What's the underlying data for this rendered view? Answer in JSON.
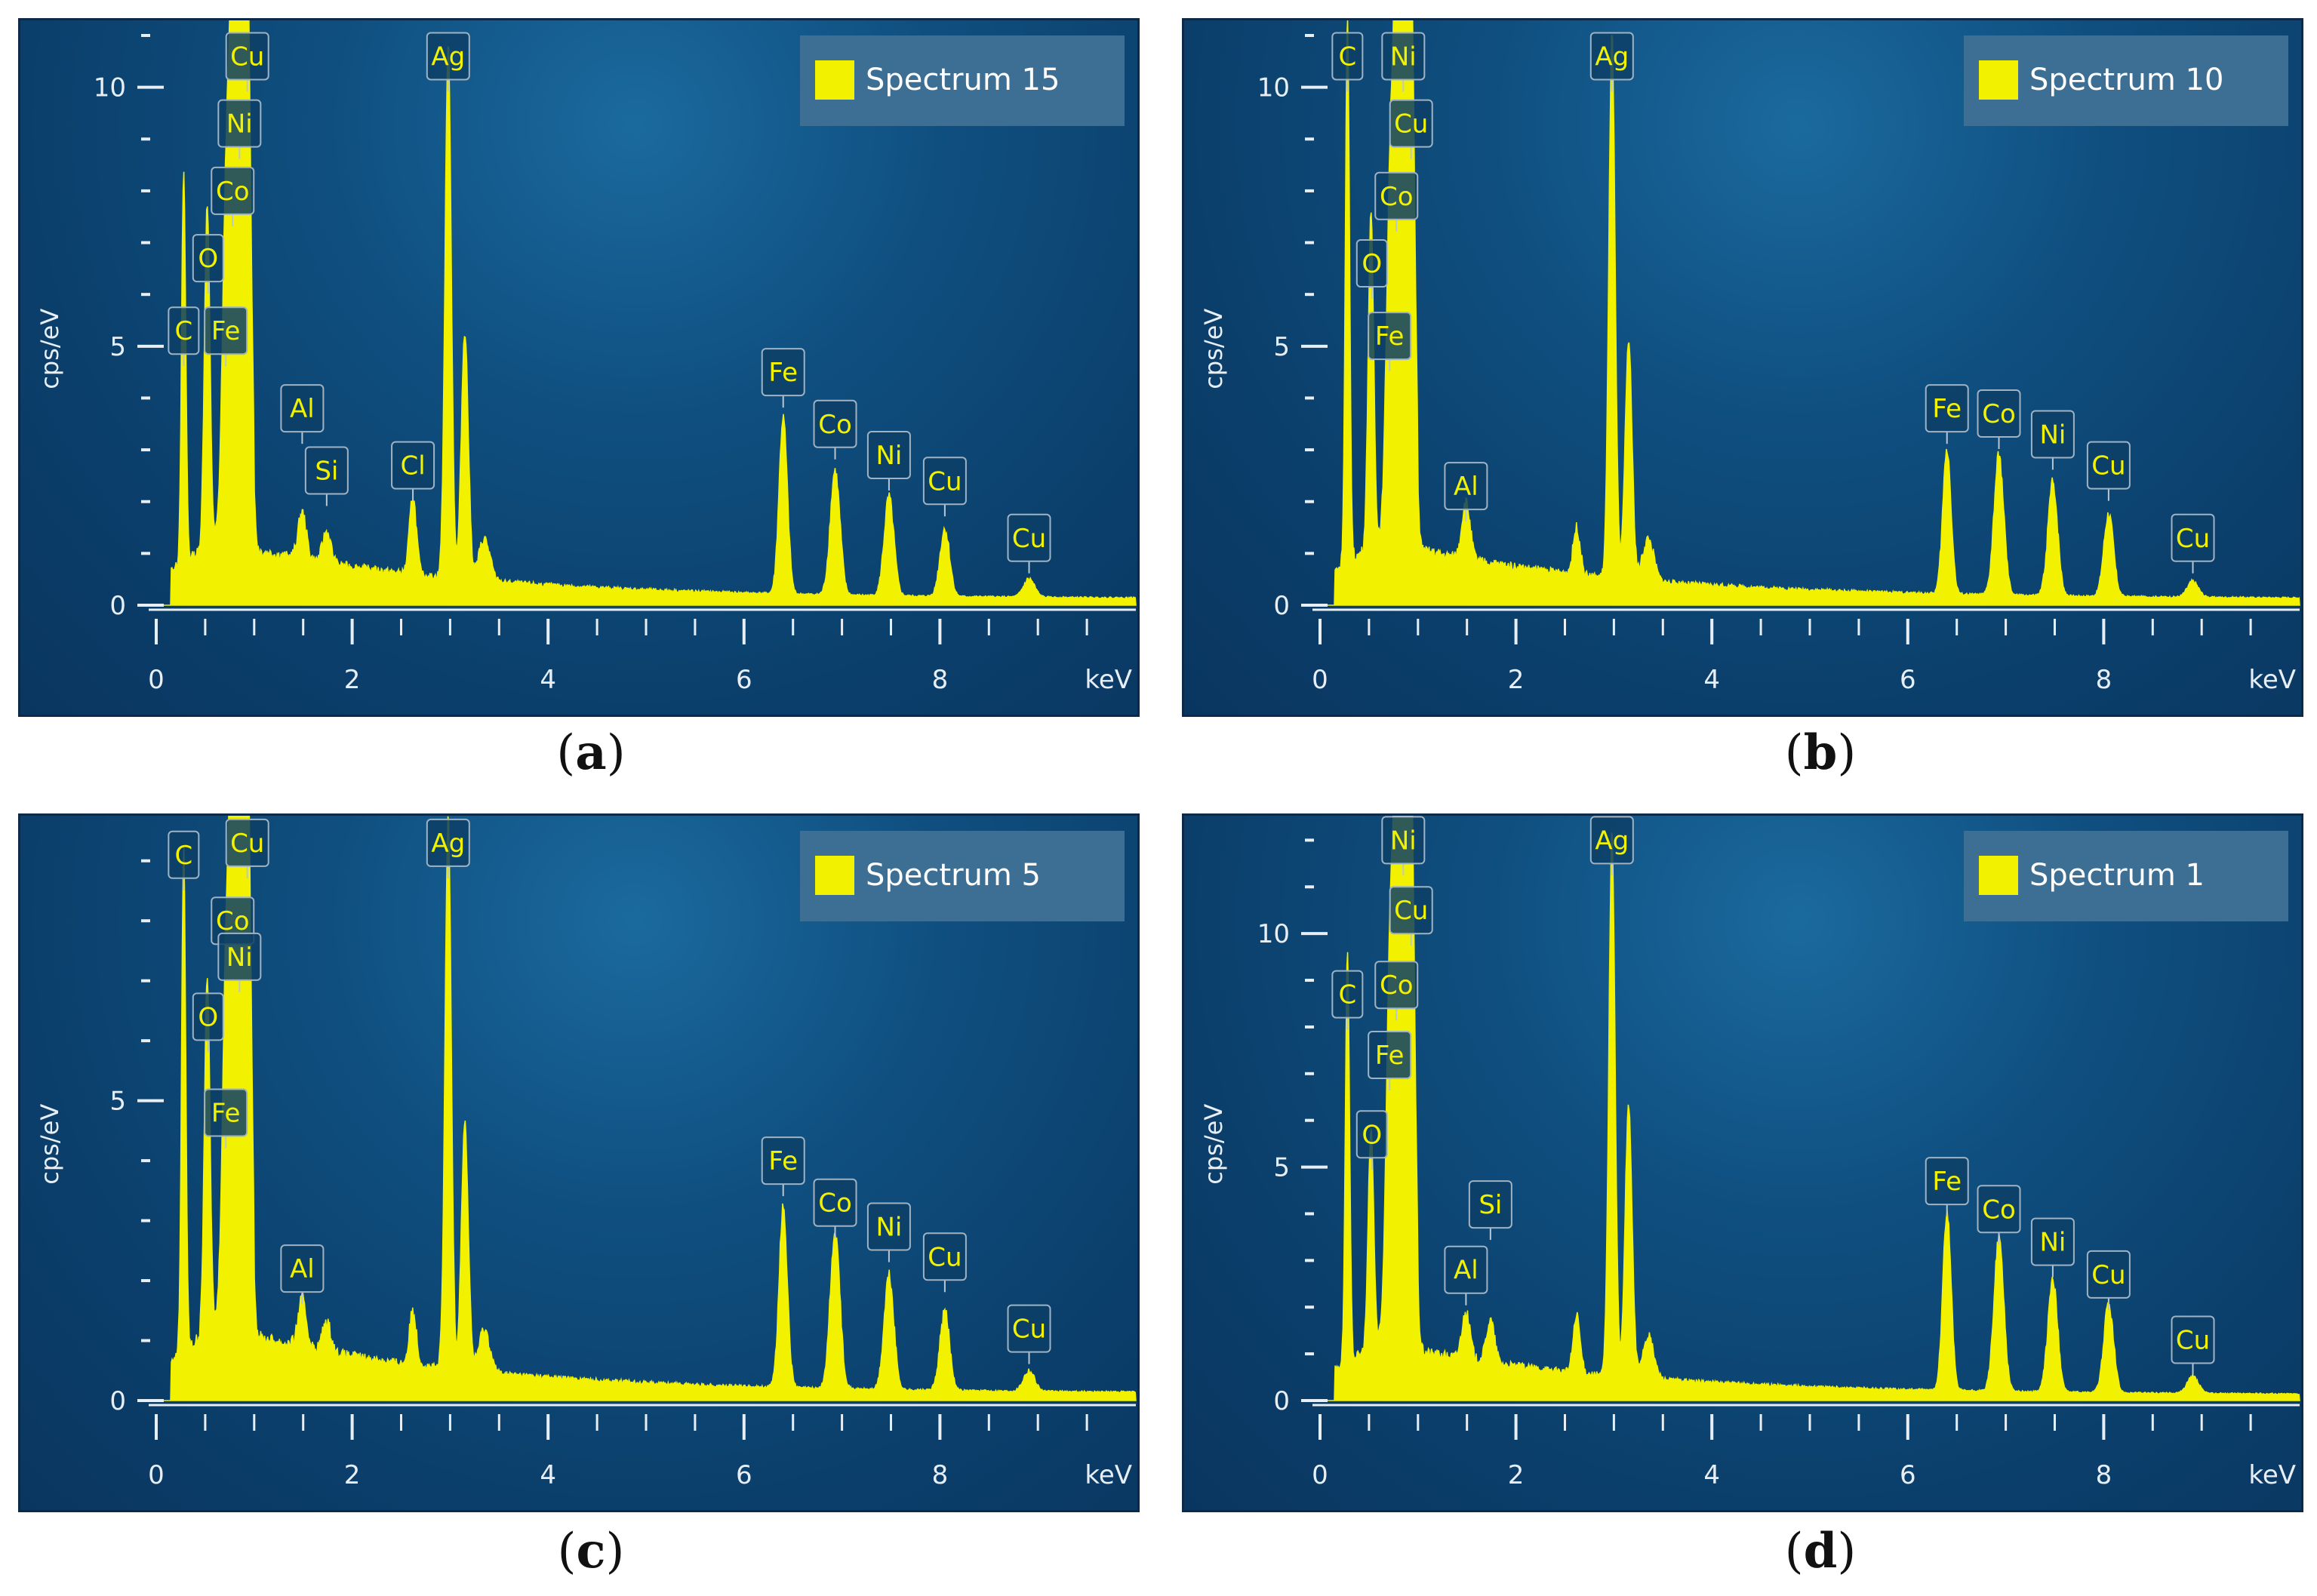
{
  "colors": {
    "spectrum": "#f2f200",
    "axis": "#e8eef5",
    "label_text": "#f2f200",
    "label_bg": "#0d3f66",
    "legend_bg": "#3d6f95"
  },
  "axis": {
    "x_unit": "keV",
    "y_label": "cps/eV"
  },
  "chart_data": [
    {
      "type": "area",
      "caption_letter": "a",
      "legend": "Spectrum 15",
      "xlim": [
        0,
        10
      ],
      "ylim": [
        0,
        11
      ],
      "yticks": [
        0,
        5,
        10
      ],
      "xticks": [
        0,
        2,
        4,
        6,
        8
      ],
      "peaks": [
        {
          "x": 0.28,
          "y": 7.5,
          "w": 0.03
        },
        {
          "x": 0.52,
          "y": 6.6,
          "w": 0.04
        },
        {
          "x": 0.71,
          "y": 5.3,
          "w": 0.05
        },
        {
          "x": 0.78,
          "y": 7.4,
          "w": 0.05
        },
        {
          "x": 0.85,
          "y": 8.5,
          "w": 0.05
        },
        {
          "x": 0.93,
          "y": 9.6,
          "w": 0.05
        },
        {
          "x": 1.49,
          "y": 0.9,
          "w": 0.06
        },
        {
          "x": 1.74,
          "y": 0.6,
          "w": 0.06
        },
        {
          "x": 2.62,
          "y": 1.5,
          "w": 0.05
        },
        {
          "x": 2.98,
          "y": 10.3,
          "w": 0.045
        },
        {
          "x": 3.15,
          "y": 4.8,
          "w": 0.05
        },
        {
          "x": 3.35,
          "y": 0.8,
          "w": 0.08
        },
        {
          "x": 6.4,
          "y": 3.4,
          "w": 0.06
        },
        {
          "x": 6.93,
          "y": 2.4,
          "w": 0.07
        },
        {
          "x": 7.48,
          "y": 1.9,
          "w": 0.07
        },
        {
          "x": 8.05,
          "y": 1.3,
          "w": 0.07
        },
        {
          "x": 8.91,
          "y": 0.35,
          "w": 0.08
        }
      ],
      "labels": [
        {
          "text": "Cu",
          "x": 0.93,
          "y": 10.6
        },
        {
          "text": "Ni",
          "x": 0.85,
          "y": 9.3
        },
        {
          "text": "Co",
          "x": 0.78,
          "y": 8.0
        },
        {
          "text": "O",
          "x": 0.53,
          "y": 6.7
        },
        {
          "text": "C",
          "x": 0.28,
          "y": 5.3
        },
        {
          "text": "Fe",
          "x": 0.71,
          "y": 5.3
        },
        {
          "text": "Al",
          "x": 1.49,
          "y": 3.8
        },
        {
          "text": "Si",
          "x": 1.74,
          "y": 2.6
        },
        {
          "text": "Cl",
          "x": 2.62,
          "y": 2.7
        },
        {
          "text": "Ag",
          "x": 2.98,
          "y": 10.6
        },
        {
          "text": "Fe",
          "x": 6.4,
          "y": 4.5
        },
        {
          "text": "Co",
          "x": 6.93,
          "y": 3.5
        },
        {
          "text": "Ni",
          "x": 7.48,
          "y": 2.9
        },
        {
          "text": "Cu",
          "x": 8.05,
          "y": 2.4
        },
        {
          "text": "Cu",
          "x": 8.91,
          "y": 1.3
        }
      ]
    },
    {
      "type": "area",
      "caption_letter": "b",
      "legend": "Spectrum 10",
      "xlim": [
        0,
        10
      ],
      "ylim": [
        0,
        11
      ],
      "yticks": [
        0,
        5,
        10
      ],
      "xticks": [
        0,
        2,
        4,
        6,
        8
      ],
      "peaks": [
        {
          "x": 0.28,
          "y": 10.5,
          "w": 0.03
        },
        {
          "x": 0.52,
          "y": 6.4,
          "w": 0.04
        },
        {
          "x": 0.71,
          "y": 5.2,
          "w": 0.05
        },
        {
          "x": 0.78,
          "y": 7.6,
          "w": 0.05
        },
        {
          "x": 0.85,
          "y": 8.8,
          "w": 0.05
        },
        {
          "x": 0.93,
          "y": 9.5,
          "w": 0.05
        },
        {
          "x": 1.49,
          "y": 1.1,
          "w": 0.06
        },
        {
          "x": 2.62,
          "y": 0.9,
          "w": 0.05
        },
        {
          "x": 2.98,
          "y": 10.5,
          "w": 0.045
        },
        {
          "x": 3.15,
          "y": 4.6,
          "w": 0.05
        },
        {
          "x": 3.35,
          "y": 0.8,
          "w": 0.08
        },
        {
          "x": 6.4,
          "y": 2.8,
          "w": 0.06
        },
        {
          "x": 6.93,
          "y": 2.7,
          "w": 0.07
        },
        {
          "x": 7.48,
          "y": 2.2,
          "w": 0.07
        },
        {
          "x": 8.05,
          "y": 1.6,
          "w": 0.07
        },
        {
          "x": 8.91,
          "y": 0.3,
          "w": 0.08
        }
      ],
      "labels": [
        {
          "text": "C",
          "x": 0.28,
          "y": 10.6
        },
        {
          "text": "Ni",
          "x": 0.85,
          "y": 10.6
        },
        {
          "text": "Cu",
          "x": 0.93,
          "y": 9.3
        },
        {
          "text": "Co",
          "x": 0.78,
          "y": 7.9
        },
        {
          "text": "O",
          "x": 0.53,
          "y": 6.6
        },
        {
          "text": "Fe",
          "x": 0.71,
          "y": 5.2
        },
        {
          "text": "Al",
          "x": 1.49,
          "y": 2.3
        },
        {
          "text": "Ag",
          "x": 2.98,
          "y": 10.6
        },
        {
          "text": "Fe",
          "x": 6.4,
          "y": 3.8
        },
        {
          "text": "Co",
          "x": 6.93,
          "y": 3.7
        },
        {
          "text": "Ni",
          "x": 7.48,
          "y": 3.3
        },
        {
          "text": "Cu",
          "x": 8.05,
          "y": 2.7
        },
        {
          "text": "Cu",
          "x": 8.91,
          "y": 1.3
        }
      ]
    },
    {
      "type": "area",
      "caption_letter": "c",
      "legend": "Spectrum 5",
      "xlim": [
        0,
        10
      ],
      "ylim": [
        0,
        9.5
      ],
      "yticks": [
        0,
        5
      ],
      "xticks": [
        0,
        2,
        4,
        6,
        8
      ],
      "peaks": [
        {
          "x": 0.28,
          "y": 8.4,
          "w": 0.03
        },
        {
          "x": 0.52,
          "y": 6.0,
          "w": 0.04
        },
        {
          "x": 0.71,
          "y": 4.6,
          "w": 0.05
        },
        {
          "x": 0.78,
          "y": 6.7,
          "w": 0.05
        },
        {
          "x": 0.85,
          "y": 7.5,
          "w": 0.05
        },
        {
          "x": 0.93,
          "y": 8.6,
          "w": 0.05
        },
        {
          "x": 1.49,
          "y": 0.8,
          "w": 0.06
        },
        {
          "x": 1.74,
          "y": 0.5,
          "w": 0.06
        },
        {
          "x": 2.62,
          "y": 0.9,
          "w": 0.05
        },
        {
          "x": 2.98,
          "y": 9.2,
          "w": 0.045
        },
        {
          "x": 3.15,
          "y": 4.1,
          "w": 0.05
        },
        {
          "x": 3.35,
          "y": 0.7,
          "w": 0.08
        },
        {
          "x": 6.4,
          "y": 3.0,
          "w": 0.06
        },
        {
          "x": 6.93,
          "y": 2.6,
          "w": 0.07
        },
        {
          "x": 7.48,
          "y": 1.9,
          "w": 0.07
        },
        {
          "x": 8.05,
          "y": 1.3,
          "w": 0.07
        },
        {
          "x": 8.91,
          "y": 0.35,
          "w": 0.08
        }
      ],
      "labels": [
        {
          "text": "Cu",
          "x": 0.93,
          "y": 9.3
        },
        {
          "text": "C",
          "x": 0.28,
          "y": 9.1
        },
        {
          "text": "Co",
          "x": 0.78,
          "y": 8.0
        },
        {
          "text": "Ni",
          "x": 0.85,
          "y": 7.4
        },
        {
          "text": "O",
          "x": 0.53,
          "y": 6.4
        },
        {
          "text": "Fe",
          "x": 0.71,
          "y": 4.8
        },
        {
          "text": "Al",
          "x": 1.49,
          "y": 2.2
        },
        {
          "text": "Ag",
          "x": 2.98,
          "y": 9.3
        },
        {
          "text": "Fe",
          "x": 6.4,
          "y": 4.0
        },
        {
          "text": "Co",
          "x": 6.93,
          "y": 3.3
        },
        {
          "text": "Ni",
          "x": 7.48,
          "y": 2.9
        },
        {
          "text": "Cu",
          "x": 8.05,
          "y": 2.4
        },
        {
          "text": "Cu",
          "x": 8.91,
          "y": 1.2
        }
      ]
    },
    {
      "type": "area",
      "caption_letter": "d",
      "legend": "Spectrum 1",
      "xlim": [
        0,
        10
      ],
      "ylim": [
        0,
        12.2
      ],
      "yticks": [
        0,
        5,
        10
      ],
      "xticks": [
        0,
        2,
        4,
        6,
        8
      ],
      "peaks": [
        {
          "x": 0.28,
          "y": 8.8,
          "w": 0.03
        },
        {
          "x": 0.52,
          "y": 4.7,
          "w": 0.04
        },
        {
          "x": 0.71,
          "y": 6.7,
          "w": 0.05
        },
        {
          "x": 0.78,
          "y": 8.3,
          "w": 0.05
        },
        {
          "x": 0.85,
          "y": 9.5,
          "w": 0.05
        },
        {
          "x": 0.93,
          "y": 10.8,
          "w": 0.05
        },
        {
          "x": 1.49,
          "y": 1.0,
          "w": 0.06
        },
        {
          "x": 1.74,
          "y": 0.9,
          "w": 0.06
        },
        {
          "x": 2.62,
          "y": 1.2,
          "w": 0.05
        },
        {
          "x": 2.98,
          "y": 11.6,
          "w": 0.045
        },
        {
          "x": 3.15,
          "y": 5.8,
          "w": 0.05
        },
        {
          "x": 3.35,
          "y": 0.9,
          "w": 0.08
        },
        {
          "x": 6.4,
          "y": 3.8,
          "w": 0.06
        },
        {
          "x": 6.93,
          "y": 3.3,
          "w": 0.07
        },
        {
          "x": 7.48,
          "y": 2.4,
          "w": 0.07
        },
        {
          "x": 8.05,
          "y": 1.9,
          "w": 0.07
        },
        {
          "x": 8.91,
          "y": 0.35,
          "w": 0.08
        }
      ],
      "labels": [
        {
          "text": "Ni",
          "x": 0.85,
          "y": 12.0
        },
        {
          "text": "Cu",
          "x": 0.93,
          "y": 10.5
        },
        {
          "text": "C",
          "x": 0.28,
          "y": 8.7
        },
        {
          "text": "Co",
          "x": 0.78,
          "y": 8.9
        },
        {
          "text": "Fe",
          "x": 0.71,
          "y": 7.4
        },
        {
          "text": "O",
          "x": 0.53,
          "y": 5.7
        },
        {
          "text": "Si",
          "x": 1.74,
          "y": 4.2
        },
        {
          "text": "Al",
          "x": 1.49,
          "y": 2.8
        },
        {
          "text": "Ag",
          "x": 2.98,
          "y": 12.0
        },
        {
          "text": "Fe",
          "x": 6.4,
          "y": 4.7
        },
        {
          "text": "Co",
          "x": 6.93,
          "y": 4.1
        },
        {
          "text": "Ni",
          "x": 7.48,
          "y": 3.4
        },
        {
          "text": "Cu",
          "x": 8.05,
          "y": 2.7
        },
        {
          "text": "Cu",
          "x": 8.91,
          "y": 1.3
        }
      ]
    }
  ]
}
